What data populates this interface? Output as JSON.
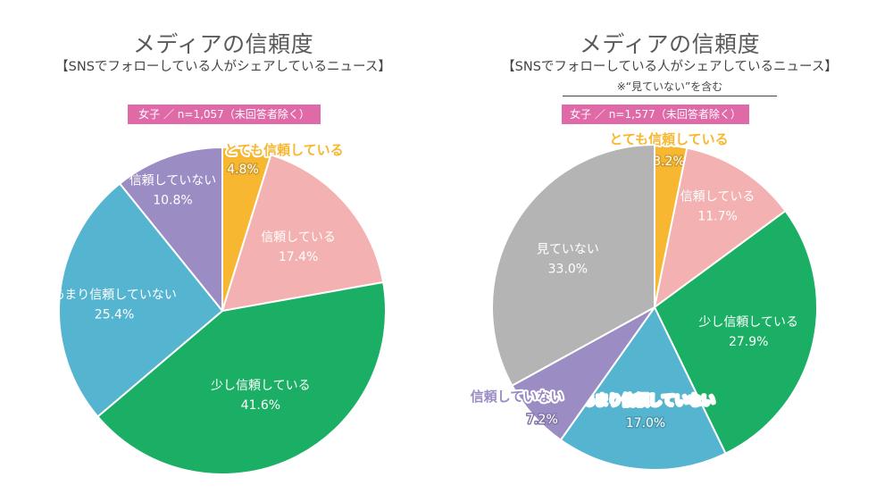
{
  "chart_data": [
    {
      "type": "pie",
      "title": "メディアの信頼度",
      "subtitle": "【SNSでフォローしている人がシェアしているニュース】",
      "sample": "女子 ／ n=1,057（未回答者除く）",
      "slices": [
        {
          "label": "とても信頼している",
          "value": 4.8,
          "display": "4.8%",
          "color": "#f7b731"
        },
        {
          "label": "信頼している",
          "value": 17.4,
          "display": "17.4%",
          "color": "#f4b1b1"
        },
        {
          "label": "少し信頼している",
          "value": 41.6,
          "display": "41.6%",
          "color": "#1aaf64"
        },
        {
          "label": "あまり信頼していない",
          "value": 25.4,
          "display": "25.4%",
          "color": "#55b4d0"
        },
        {
          "label": "信頼していない",
          "value": 10.8,
          "display": "10.8%",
          "color": "#9b8cc4"
        }
      ]
    },
    {
      "type": "pie",
      "title": "メディアの信頼度",
      "subtitle": "【SNSでフォローしている人がシェアしているニュース】",
      "note": "※“見ていない”を含む",
      "sample": "女子 ／ n=1,577（未回答者除く）",
      "slices": [
        {
          "label": "とても信頼している",
          "value": 3.2,
          "display": "3.2%",
          "color": "#f7b731"
        },
        {
          "label": "信頼している",
          "value": 11.7,
          "display": "11.7%",
          "color": "#f4b1b1"
        },
        {
          "label": "少し信頼している",
          "value": 27.9,
          "display": "27.9%",
          "color": "#1aaf64"
        },
        {
          "label": "あまり信頼していない",
          "value": 17.0,
          "display": "17.0%",
          "color": "#55b4d0"
        },
        {
          "label": "信頼していない",
          "value": 7.2,
          "display": "7.2%",
          "color": "#9b8cc4"
        },
        {
          "label": "見ていない",
          "value": 33.0,
          "display": "33.0%",
          "color": "#b4b4b4"
        }
      ]
    }
  ]
}
